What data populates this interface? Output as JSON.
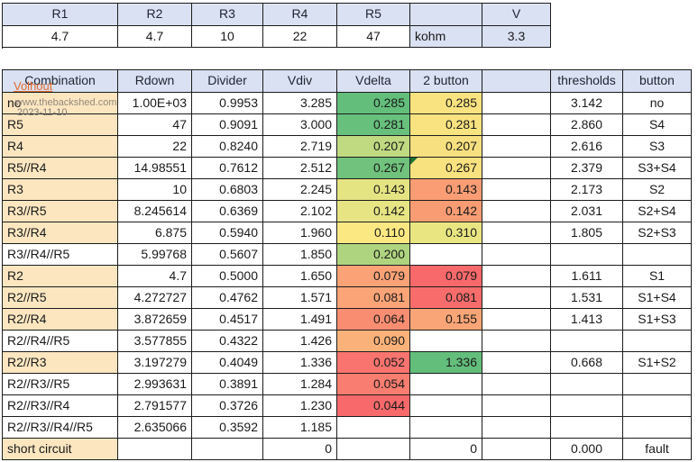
{
  "watermark": {
    "name": "Volhout",
    "site": "www.thebackshed.com",
    "date": "2023-11-10"
  },
  "colors": {
    "header_bg": "#D9E1F2",
    "combination_bg": "#FBE6C0",
    "border": "#1c1c1c",
    "watermark_link_orange": "#E26A2C",
    "watermark_gray": "#93897B",
    "error_corner_green": "#1F7032",
    "scale_green": "#63BE7B",
    "scale_yellow": "#FFEB84",
    "scale_red": "#F8696B"
  },
  "top_table": {
    "headers": [
      "R1",
      "R2",
      "R3",
      "R4",
      "R5",
      "",
      "V"
    ],
    "values": [
      "4.7",
      "4.7",
      "10",
      "22",
      "47",
      "kohm",
      "3.3"
    ],
    "value_styles": [
      "plain",
      "plain",
      "plain",
      "plain",
      "plain",
      "header-left",
      "header"
    ]
  },
  "main_table": {
    "headers": [
      "Combination",
      "Rdown",
      "Divider",
      "Vdiv",
      "Vdelta",
      "2 button",
      "",
      "thresholds",
      "button"
    ],
    "rows": [
      {
        "combination": "no",
        "combo_filled": true,
        "rdown": "1.00E+03",
        "divider": "0.9953",
        "vdiv": "3.285",
        "vdelta": "0.285",
        "vdelta_bg": "#63BE7B",
        "button2": "0.285",
        "button2_bg": "#F9E380",
        "error_corner": false,
        "threshold": "3.142",
        "button": "no"
      },
      {
        "combination": "R5",
        "combo_filled": true,
        "rdown": "47",
        "divider": "0.9091",
        "vdiv": "3.000",
        "vdelta": "0.281",
        "vdelta_bg": "#67C07C",
        "button2": "0.281",
        "button2_bg": "#F9E380",
        "error_corner": false,
        "threshold": "2.860",
        "button": "S4"
      },
      {
        "combination": "R4",
        "combo_filled": true,
        "rdown": "22",
        "divider": "0.8240",
        "vdiv": "2.719",
        "vdelta": "0.207",
        "vdelta_bg": "#C0DA81",
        "button2": "0.207",
        "button2_bg": "#F7E07F",
        "error_corner": false,
        "threshold": "2.616",
        "button": "S3"
      },
      {
        "combination": "R5//R4",
        "combo_filled": true,
        "rdown": "14.98551",
        "divider": "0.7612",
        "vdiv": "2.512",
        "vdelta": "0.267",
        "vdelta_bg": "#70C27C",
        "button2": "0.267",
        "button2_bg": "#F8E17F",
        "error_corner": true,
        "threshold": "2.379",
        "button": "S3+S4"
      },
      {
        "combination": "R3",
        "combo_filled": true,
        "rdown": "10",
        "divider": "0.6803",
        "vdiv": "2.245",
        "vdelta": "0.143",
        "vdelta_bg": "#E5E483",
        "button2": "0.143",
        "button2_bg": "#FA9D74",
        "error_corner": false,
        "threshold": "2.173",
        "button": "S2"
      },
      {
        "combination": "R3//R5",
        "combo_filled": true,
        "rdown": "8.245614",
        "divider": "0.6369",
        "vdiv": "2.102",
        "vdelta": "0.142",
        "vdelta_bg": "#E6E483",
        "button2": "0.142",
        "button2_bg": "#FA9C73",
        "error_corner": false,
        "threshold": "2.031",
        "button": "S2+S4"
      },
      {
        "combination": "R3//R4",
        "combo_filled": true,
        "rdown": "6.875",
        "divider": "0.5940",
        "vdiv": "1.960",
        "vdelta": "0.110",
        "vdelta_bg": "#FCE883",
        "button2": "0.310",
        "button2_bg": "#E9E682",
        "error_corner": false,
        "threshold": "1.805",
        "button": "S2+S3"
      },
      {
        "combination": "R3//R4//R5",
        "combo_filled": false,
        "rdown": "5.99768",
        "divider": "0.5607",
        "vdiv": "1.850",
        "vdelta": "0.200",
        "vdelta_bg": "#AFD47F",
        "button2": "",
        "button2_bg": null,
        "error_corner": false,
        "threshold": "",
        "button": ""
      },
      {
        "combination": "R2",
        "combo_filled": true,
        "rdown": "4.7",
        "divider": "0.5000",
        "vdiv": "1.650",
        "vdelta": "0.079",
        "vdelta_bg": "#FBA276",
        "button2": "0.079",
        "button2_bg": "#F8696B",
        "error_corner": false,
        "threshold": "1.611",
        "button": "S1"
      },
      {
        "combination": "R2//R5",
        "combo_filled": true,
        "rdown": "4.272727",
        "divider": "0.4762",
        "vdiv": "1.571",
        "vdelta": "0.081",
        "vdelta_bg": "#FBA477",
        "button2": "0.081",
        "button2_bg": "#F86D6C",
        "error_corner": false,
        "threshold": "1.531",
        "button": "S1+S4"
      },
      {
        "combination": "R2//R4",
        "combo_filled": true,
        "rdown": "3.872659",
        "divider": "0.4517",
        "vdiv": "1.491",
        "vdelta": "0.064",
        "vdelta_bg": "#F98D72",
        "button2": "0.155",
        "button2_bg": "#FAA577",
        "error_corner": false,
        "threshold": "1.413",
        "button": "S1+S3"
      },
      {
        "combination": "R2//R4//R5",
        "combo_filled": false,
        "rdown": "3.577855",
        "divider": "0.4322",
        "vdiv": "1.426",
        "vdelta": "0.090",
        "vdelta_bg": "#FBB27A",
        "button2": "",
        "button2_bg": null,
        "error_corner": false,
        "threshold": "",
        "button": ""
      },
      {
        "combination": "R2//R3",
        "combo_filled": true,
        "rdown": "3.197279",
        "divider": "0.4049",
        "vdiv": "1.336",
        "vdelta": "0.052",
        "vdelta_bg": "#F9746E",
        "button2": "1.336",
        "button2_bg": "#63BE7B",
        "error_corner": false,
        "threshold": "0.668",
        "button": "S1+S2"
      },
      {
        "combination": "R2//R3//R5",
        "combo_filled": false,
        "rdown": "2.993631",
        "divider": "0.3891",
        "vdiv": "1.284",
        "vdelta": "0.054",
        "vdelta_bg": "#F97D70",
        "button2": "",
        "button2_bg": null,
        "error_corner": false,
        "threshold": "",
        "button": ""
      },
      {
        "combination": "R2//R3//R4",
        "combo_filled": false,
        "rdown": "2.791577",
        "divider": "0.3726",
        "vdiv": "1.230",
        "vdelta": "0.044",
        "vdelta_bg": "#F8696B",
        "button2": "",
        "button2_bg": null,
        "error_corner": false,
        "threshold": "",
        "button": ""
      },
      {
        "combination": "R2//R3//R4//R5",
        "combo_filled": false,
        "rdown": "2.635066",
        "divider": "0.3592",
        "vdiv": "1.185",
        "vdelta": "",
        "vdelta_bg": null,
        "button2": "",
        "button2_bg": null,
        "error_corner": false,
        "threshold": "",
        "button": ""
      },
      {
        "combination": "short circuit",
        "combo_filled": true,
        "rdown": "",
        "divider": "",
        "vdiv": "0",
        "vdelta": "",
        "vdelta_bg": null,
        "button2": "0",
        "button2_bg": null,
        "error_corner": false,
        "threshold": "0.000",
        "button": "fault"
      }
    ]
  }
}
